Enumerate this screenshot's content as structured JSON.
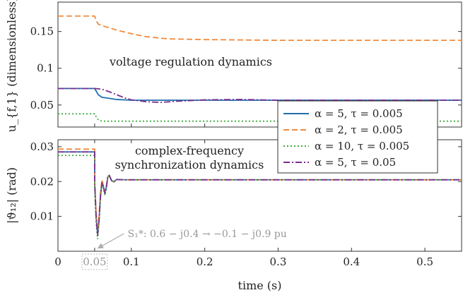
{
  "chart_data": [
    {
      "type": "line",
      "ylabel": "u_{f,1}  (dimensionless)",
      "annotation": "voltage regulation dynamics",
      "xlim": [
        0,
        0.55
      ],
      "ylim": [
        0.02,
        0.19
      ],
      "yticks": [
        0.05,
        0.1,
        0.15
      ],
      "ytick_labels": [
        "0.05",
        "0.1",
        "0.15"
      ],
      "grid": false,
      "series": [
        {
          "name": "α = 5,   τ = 0.005",
          "color": "#1f6fad",
          "dash": "solid",
          "x": [
            0,
            0.05,
            0.052,
            0.055,
            0.06,
            0.07,
            0.08,
            0.1,
            0.15,
            0.2,
            0.55
          ],
          "y": [
            0.0725,
            0.0725,
            0.069,
            0.064,
            0.0605,
            0.059,
            0.0575,
            0.0565,
            0.0565,
            0.0565,
            0.0565
          ]
        },
        {
          "name": "α = 2,   τ = 0.005",
          "color": "#f08a3c",
          "dash": "dashed",
          "x": [
            0,
            0.05,
            0.052,
            0.055,
            0.06,
            0.08,
            0.1,
            0.12,
            0.15,
            0.2,
            0.3,
            0.55
          ],
          "y": [
            0.171,
            0.171,
            0.165,
            0.16,
            0.158,
            0.152,
            0.147,
            0.143,
            0.14,
            0.139,
            0.138,
            0.138
          ]
        },
        {
          "name": "α = 10, τ = 0.005",
          "color": "#3daa3d",
          "dash": "dotted",
          "x": [
            0,
            0.05,
            0.052,
            0.055,
            0.06,
            0.1,
            0.2,
            0.55
          ],
          "y": [
            0.038,
            0.038,
            0.034,
            0.03,
            0.028,
            0.028,
            0.028,
            0.028
          ]
        },
        {
          "name": "α = 5,   τ = 0.05",
          "color": "#7b2d8e",
          "dash": "dashdot",
          "x": [
            0,
            0.05,
            0.06,
            0.07,
            0.08,
            0.09,
            0.1,
            0.12,
            0.14,
            0.16,
            0.2,
            0.25,
            0.3,
            0.55
          ],
          "y": [
            0.0725,
            0.0725,
            0.0715,
            0.068,
            0.064,
            0.06,
            0.057,
            0.0545,
            0.0535,
            0.055,
            0.057,
            0.0575,
            0.0565,
            0.0565
          ]
        }
      ]
    },
    {
      "type": "line",
      "xlabel": "time (s)",
      "ylabel": "|ϑ₁₂| (rad)",
      "annotation": [
        "complex-frequency",
        "synchronization dynamics"
      ],
      "step_annotation": "S₁*: 0.6 − j0.4 → −0.1 − j0.9 pu",
      "step_marker": "0.05",
      "xlim": [
        0,
        0.55
      ],
      "ylim": [
        0,
        0.032
      ],
      "xticks": [
        0,
        0.05,
        0.1,
        0.2,
        0.3,
        0.4,
        0.5
      ],
      "xtick_labels": [
        "0",
        "0.05",
        "0.1",
        "0.2",
        "0.3",
        "0.4",
        "0.5"
      ],
      "yticks": [
        0.01,
        0.02,
        0.03
      ],
      "ytick_labels": [
        "0.01",
        "0.02",
        "0.03"
      ],
      "grid": false,
      "series": [
        {
          "name": "α = 5,   τ = 0.005",
          "color": "#1f6fad",
          "dash": "solid",
          "x": [
            0,
            0.05,
            0.05,
            0.052,
            0.054,
            0.056,
            0.058,
            0.06,
            0.062,
            0.064,
            0.066,
            0.068,
            0.07,
            0.073,
            0.076,
            0.08,
            0.09,
            0.1,
            0.55
          ],
          "y": [
            0.0285,
            0.0285,
            0.02,
            0.01,
            0.005,
            0.009,
            0.016,
            0.02,
            0.0185,
            0.0165,
            0.0185,
            0.0215,
            0.0218,
            0.0203,
            0.0199,
            0.0206,
            0.0205,
            0.0205,
            0.0205
          ]
        },
        {
          "name": "α = 2,   τ = 0.005",
          "color": "#f08a3c",
          "dash": "dashed",
          "x": [
            0,
            0.05,
            0.05,
            0.052,
            0.054,
            0.056,
            0.058,
            0.06,
            0.062,
            0.064,
            0.066,
            0.068,
            0.07,
            0.073,
            0.076,
            0.08,
            0.09,
            0.1,
            0.55
          ],
          "y": [
            0.0293,
            0.0293,
            0.02,
            0.011,
            0.006,
            0.01,
            0.017,
            0.0205,
            0.0188,
            0.017,
            0.0188,
            0.0215,
            0.0216,
            0.0203,
            0.02,
            0.0206,
            0.0205,
            0.0205,
            0.0205
          ]
        },
        {
          "name": "α = 10, τ = 0.005",
          "color": "#3daa3d",
          "dash": "dotted",
          "x": [
            0,
            0.05,
            0.05,
            0.052,
            0.054,
            0.056,
            0.058,
            0.06,
            0.062,
            0.064,
            0.066,
            0.068,
            0.07,
            0.073,
            0.076,
            0.08,
            0.09,
            0.1,
            0.55
          ],
          "y": [
            0.0275,
            0.0275,
            0.018,
            0.008,
            0.0035,
            0.008,
            0.0155,
            0.0195,
            0.018,
            0.016,
            0.018,
            0.0213,
            0.0216,
            0.0202,
            0.0199,
            0.0206,
            0.0205,
            0.0205,
            0.0205
          ]
        },
        {
          "name": "α = 5,   τ = 0.05",
          "color": "#7b2d8e",
          "dash": "dashdot",
          "x": [
            0,
            0.05,
            0.05,
            0.052,
            0.054,
            0.056,
            0.058,
            0.06,
            0.062,
            0.064,
            0.066,
            0.068,
            0.07,
            0.073,
            0.076,
            0.08,
            0.09,
            0.1,
            0.55
          ],
          "y": [
            0.0285,
            0.0285,
            0.02,
            0.01,
            0.0045,
            0.009,
            0.016,
            0.0198,
            0.0184,
            0.0166,
            0.0186,
            0.0214,
            0.0217,
            0.0203,
            0.0199,
            0.0206,
            0.0205,
            0.0205,
            0.0205
          ]
        }
      ]
    }
  ]
}
